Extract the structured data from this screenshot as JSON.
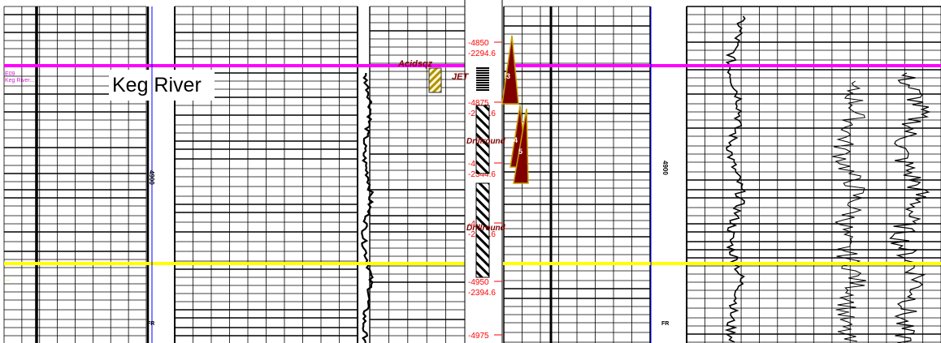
{
  "formation": {
    "label": "Keg River"
  },
  "tops": [
    {
      "name": "top-magenta",
      "color": "#ff00ff",
      "caption": "E09",
      "caption2": "Keg River..."
    },
    {
      "name": "top-yellow",
      "color": "#ffff00",
      "caption": "...",
      "caption2": ""
    }
  ],
  "depth_track": {
    "marks": [
      {
        "md": "4850",
        "tvd": "-2294.6"
      },
      {
        "md": "4875",
        "tvd": "-2314.6"
      },
      {
        "md": "4900",
        "tvd": "-2344.6"
      },
      {
        "md": "4925",
        "tvd": "-2364.6"
      },
      {
        "md": "4950",
        "tvd": "-2394.6"
      },
      {
        "md": "4975",
        "tvd": ""
      }
    ],
    "color": "#ff0000"
  },
  "intervals": {
    "acid_label": "Acidsqz",
    "jet_label": "JET",
    "drill_label_1": "Drillround",
    "drill_label_2": "Drillround",
    "accent": "#c8a000",
    "fill": "#800000"
  },
  "core_numbers": [
    "3",
    "4",
    "5"
  ],
  "scale_labels": {
    "left": "4900",
    "right": "4900",
    "fr_left": "FR",
    "fr_right": "FR"
  },
  "colors": {
    "track_line": "#0000ff",
    "grid": "#000000"
  }
}
